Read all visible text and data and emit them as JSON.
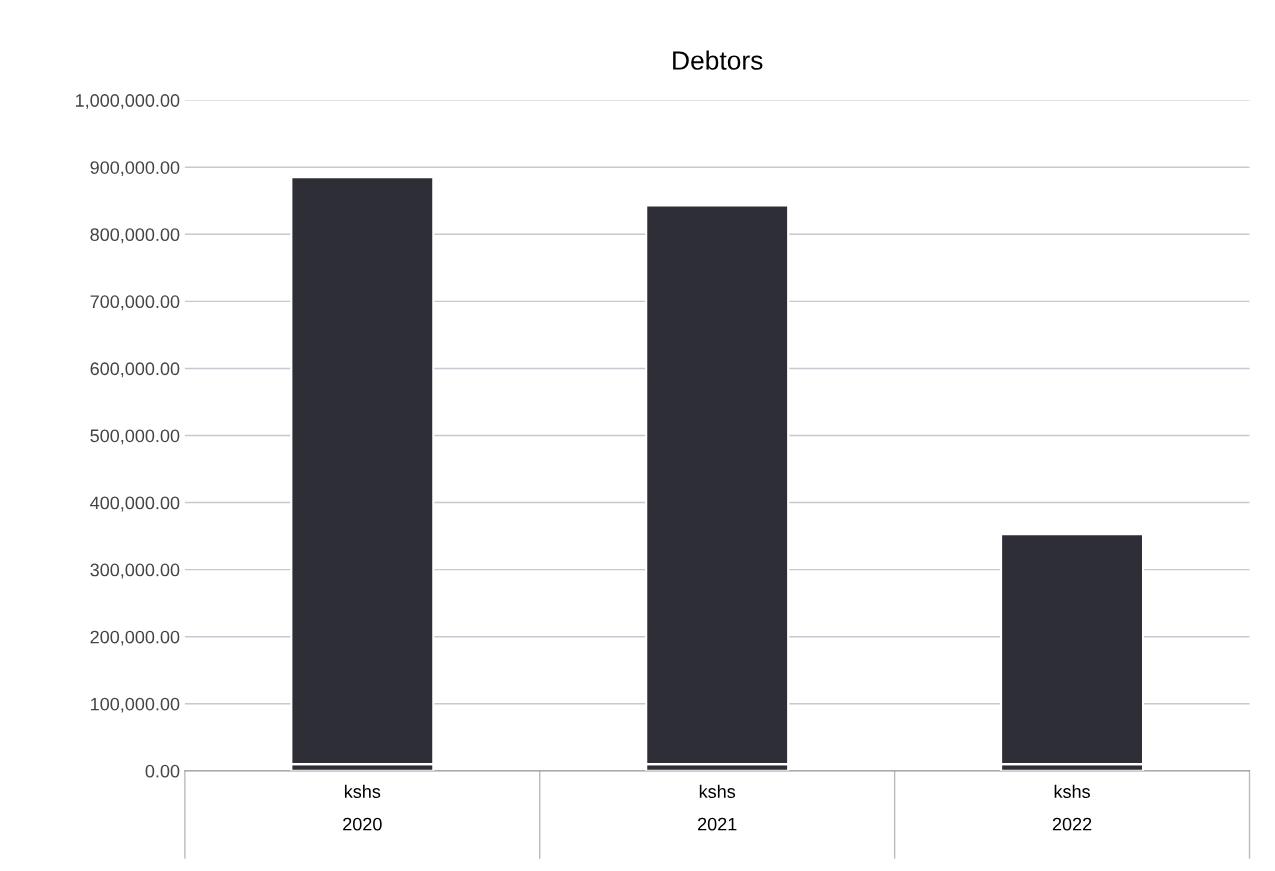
{
  "chart_data": {
    "type": "bar",
    "title": "Debtors",
    "stacked": true,
    "categories": [
      "kshs\n2020",
      "kshs\n2021",
      "kshs\n2022"
    ],
    "series": [
      {
        "color": "#2e2e36",
        "values": [
          10000,
          10000,
          10000
        ]
      },
      {
        "color": "#2e2e36",
        "values": [
          875000,
          833000,
          343000
        ]
      }
    ],
    "ylim": [
      0,
      1000000
    ],
    "yticks": [
      {
        "value": 0,
        "label": "0.00"
      },
      {
        "value": 100000,
        "label": "100,000.00"
      },
      {
        "value": 200000,
        "label": "200,000.00"
      },
      {
        "value": 300000,
        "label": "300,000.00"
      },
      {
        "value": 400000,
        "label": "400,000.00"
      },
      {
        "value": 500000,
        "label": "500,000.00"
      },
      {
        "value": 600000,
        "label": "600,000.00"
      },
      {
        "value": 700000,
        "label": "700,000.00"
      },
      {
        "value": 800000,
        "label": "800,000.00"
      },
      {
        "value": 900000,
        "label": "900,000.00"
      },
      {
        "value": 1000000,
        "label": "1,000,000.00"
      }
    ],
    "grid": "y"
  }
}
